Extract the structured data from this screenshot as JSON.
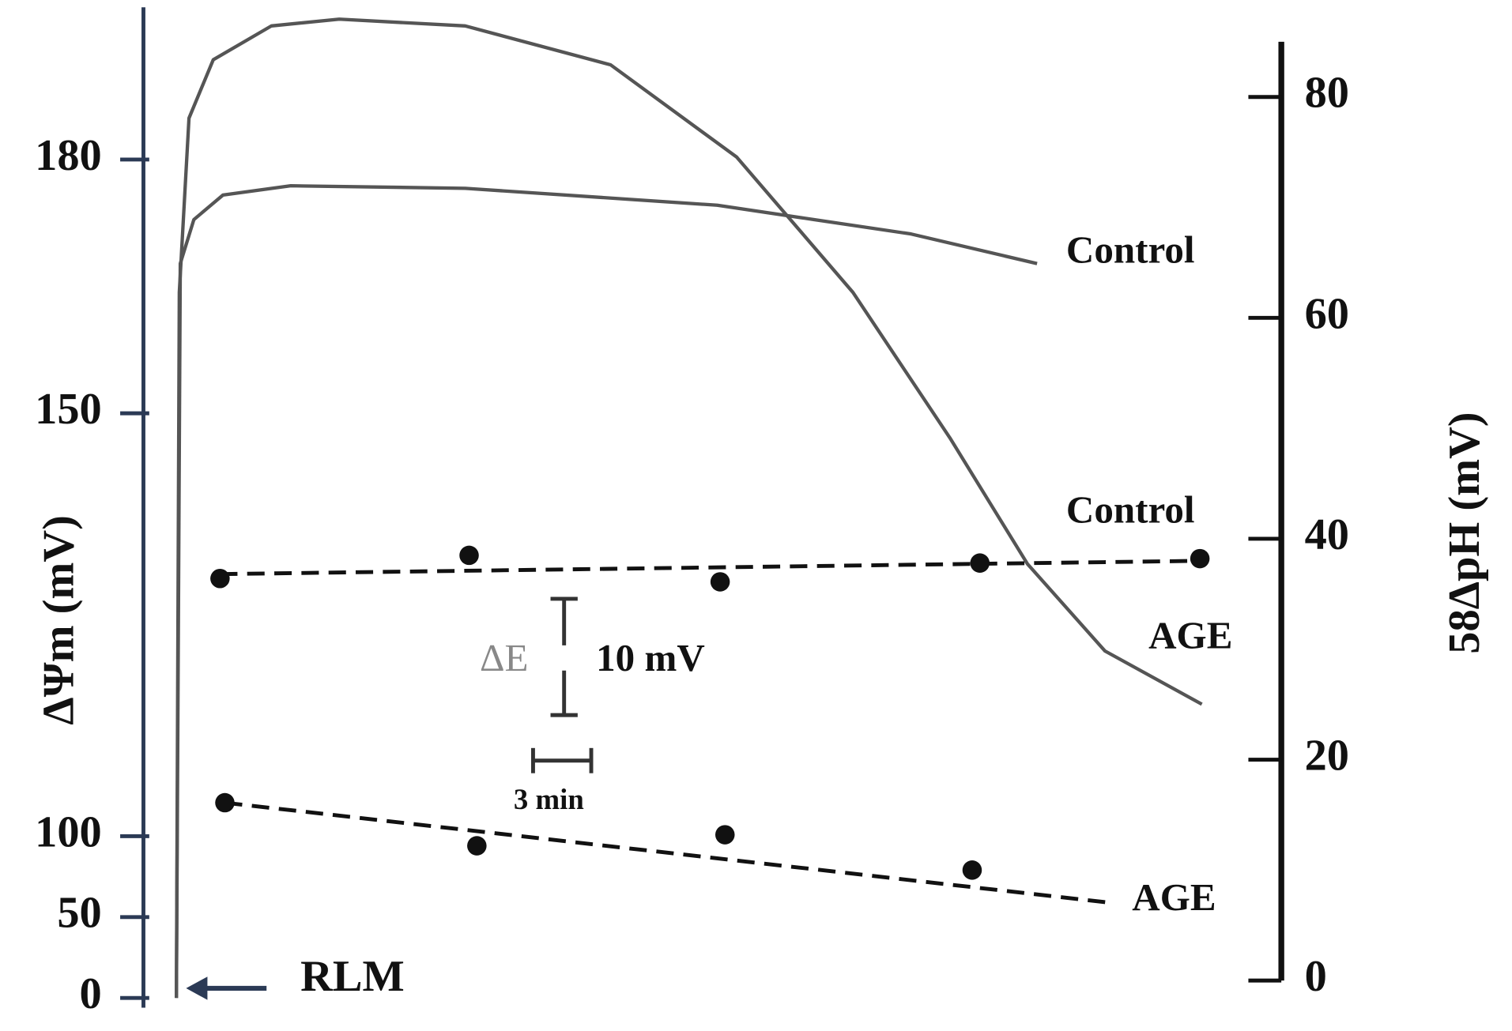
{
  "chart_data": {
    "type": "line",
    "y_label": "ΔΨm (mV)",
    "y2_label": "58ΔpH (mV)",
    "xlim": [
      0,
      53
    ],
    "ylim": [
      0,
      198
    ],
    "yticks": [
      0,
      50,
      100,
      150,
      180
    ],
    "y2lim": [
      0,
      85
    ],
    "y2ticks": [
      0,
      20,
      40,
      60,
      80
    ],
    "annotations": {
      "arrow": "RLM",
      "scale_y_symbol": "ΔE",
      "scale_y": "10 mV",
      "scale_x": "3 min"
    },
    "series": [
      {
        "name": "Control",
        "color": "#555555",
        "style": "solid",
        "x": [
          0,
          0.2,
          0.9,
          2.4,
          5.9,
          14.9,
          27.9,
          32.9,
          37.9,
          44.4
        ],
        "values": [
          0,
          167.7,
          172.9,
          175.8,
          176.9,
          176.6,
          174.6,
          172.9,
          171.2,
          167.7
        ]
      },
      {
        "name": "AGE",
        "color": "#555555",
        "style": "solid",
        "x": [
          0,
          0.15,
          0.65,
          1.9,
          4.9,
          8.4,
          14.9,
          22.4,
          28.9,
          34.9,
          39.9,
          43.9,
          47.9,
          52.9
        ],
        "values": [
          0,
          164.3,
          184.9,
          191.8,
          195.8,
          196.6,
          195.8,
          191.2,
          180.3,
          164.3,
          147.1,
          132.2,
          121.9,
          115.6
        ]
      },
      {
        "name": "Control",
        "color": "#111111",
        "style": "dashed",
        "axis": "y2",
        "x": [
          2.25,
          15.1,
          28.05,
          41.45,
          52.8
        ],
        "values": [
          36.4,
          38.5,
          36.1,
          37.8,
          38.2
        ],
        "trend_x": [
          2.25,
          52.8
        ],
        "trend": [
          36.8,
          38.0
        ]
      },
      {
        "name": "AGE",
        "color": "#111111",
        "style": "dashed",
        "axis": "y2",
        "x": [
          2.5,
          15.5,
          28.3,
          41.05
        ],
        "values": [
          16.1,
          12.2,
          13.2,
          10.0
        ],
        "trend_x": [
          2.5,
          48.4
        ],
        "trend": [
          16.1,
          7.0
        ]
      }
    ]
  }
}
